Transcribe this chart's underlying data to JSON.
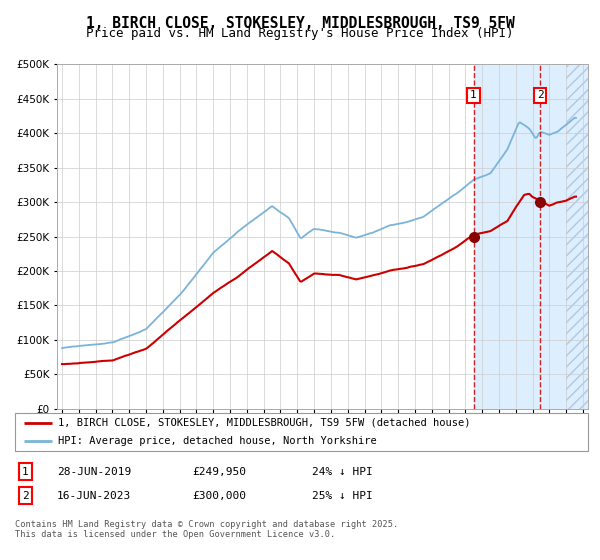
{
  "title": "1, BIRCH CLOSE, STOKESLEY, MIDDLESBROUGH, TS9 5FW",
  "subtitle": "Price paid vs. HM Land Registry's House Price Index (HPI)",
  "ylim": [
    0,
    500000
  ],
  "yticks": [
    0,
    50000,
    100000,
    150000,
    200000,
    250000,
    300000,
    350000,
    400000,
    450000,
    500000
  ],
  "xlim_start": 1994.7,
  "xlim_end": 2026.3,
  "line1_color": "#cc0000",
  "line2_color": "#7ab4d8",
  "vline1_x": 2019.49,
  "vline2_x": 2023.46,
  "marker1_x": 2019.49,
  "marker1_y": 249950,
  "marker2_x": 2023.46,
  "marker2_y": 300000,
  "legend_line1": "1, BIRCH CLOSE, STOKESLEY, MIDDLESBROUGH, TS9 5FW (detached house)",
  "legend_line2": "HPI: Average price, detached house, North Yorkshire",
  "table_row1": [
    "1",
    "28-JUN-2019",
    "£249,950",
    "24% ↓ HPI"
  ],
  "table_row2": [
    "2",
    "16-JUN-2023",
    "£300,000",
    "25% ↓ HPI"
  ],
  "footer": "Contains HM Land Registry data © Crown copyright and database right 2025.\nThis data is licensed under the Open Government Licence v3.0.",
  "plot_bg_color": "#ffffff",
  "grid_color": "#cccccc",
  "shade_color": "#ddeeff",
  "title_fontsize": 10.5,
  "subtitle_fontsize": 9
}
